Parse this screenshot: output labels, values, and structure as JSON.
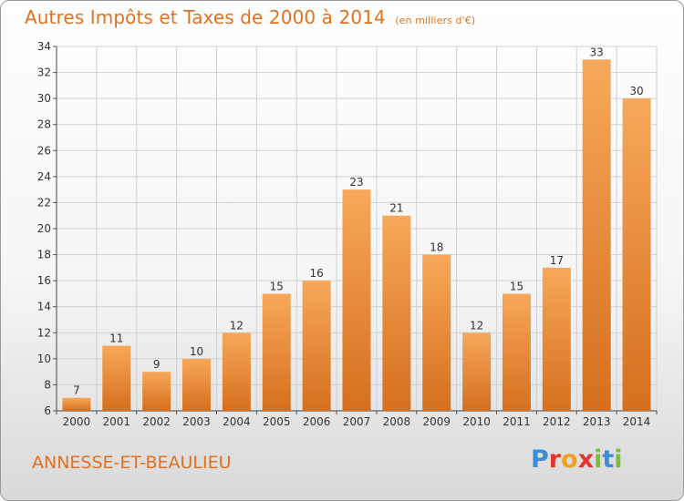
{
  "header": {
    "title": "Autres Impôts et Taxes de 2000 à 2014",
    "subtitle": "(en milliers d'€)"
  },
  "footer": {
    "commune": "ANNESSE-ET-BEAULIEU",
    "logo": "Proxiti"
  },
  "colors": {
    "accent": "#e1711f",
    "bar_top": "#f7a85a",
    "bar_bottom": "#d56f1d"
  },
  "chart_data": {
    "type": "bar",
    "categories": [
      "2000",
      "2001",
      "2002",
      "2003",
      "2004",
      "2005",
      "2006",
      "2007",
      "2008",
      "2009",
      "2010",
      "2011",
      "2012",
      "2013",
      "2014"
    ],
    "values": [
      7,
      11,
      9,
      10,
      12,
      15,
      16,
      23,
      21,
      18,
      12,
      15,
      17,
      33,
      30
    ],
    "ylim": [
      6,
      34
    ],
    "yticks": [
      6,
      8,
      10,
      12,
      14,
      16,
      18,
      20,
      22,
      24,
      26,
      28,
      30,
      32,
      34
    ],
    "grid": true,
    "data_labels": true
  }
}
